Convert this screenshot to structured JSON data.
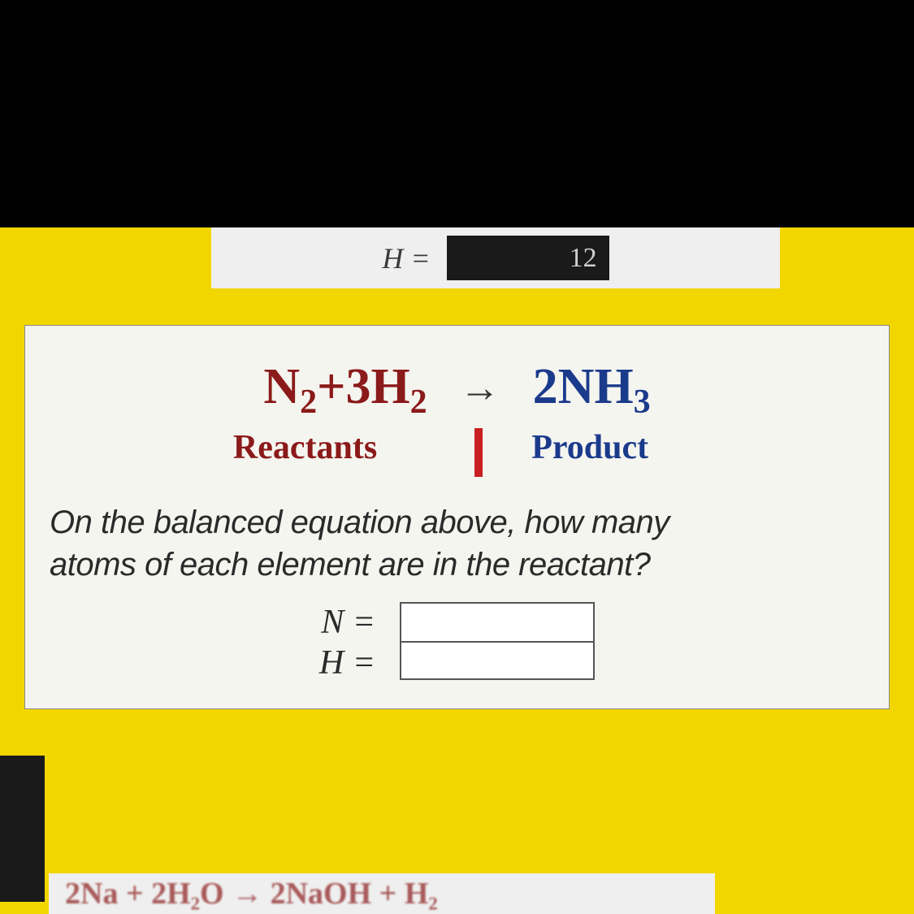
{
  "colors": {
    "background_black": "#000000",
    "yellow_bg": "#f2d600",
    "card_bg": "#f5f5f0",
    "reactant_color": "#8b1a1a",
    "product_color": "#1a3a8b",
    "text_color": "#2a2a2a",
    "cursor_red": "#c82020",
    "input_border": "#555555"
  },
  "top_fragment": {
    "label": "H =",
    "value": "12"
  },
  "equation": {
    "reactant_n": "N",
    "reactant_n_sub": "2",
    "plus": " + ",
    "reactant_h_coef": "3H",
    "reactant_h_sub": "2",
    "arrow": "→",
    "product_coef": "2NH",
    "product_sub": "3"
  },
  "labels": {
    "reactants": "Reactants",
    "product": "Product"
  },
  "question": {
    "line1": "On the balanced equation above, how many",
    "line2": "atoms of each element are in the reactant?"
  },
  "answers": {
    "n_label": "N =",
    "h_label": "H =",
    "n_value": "",
    "h_value": ""
  },
  "bottom_fragment": "2Na + 2H₂O → 2NaOH + H₂"
}
